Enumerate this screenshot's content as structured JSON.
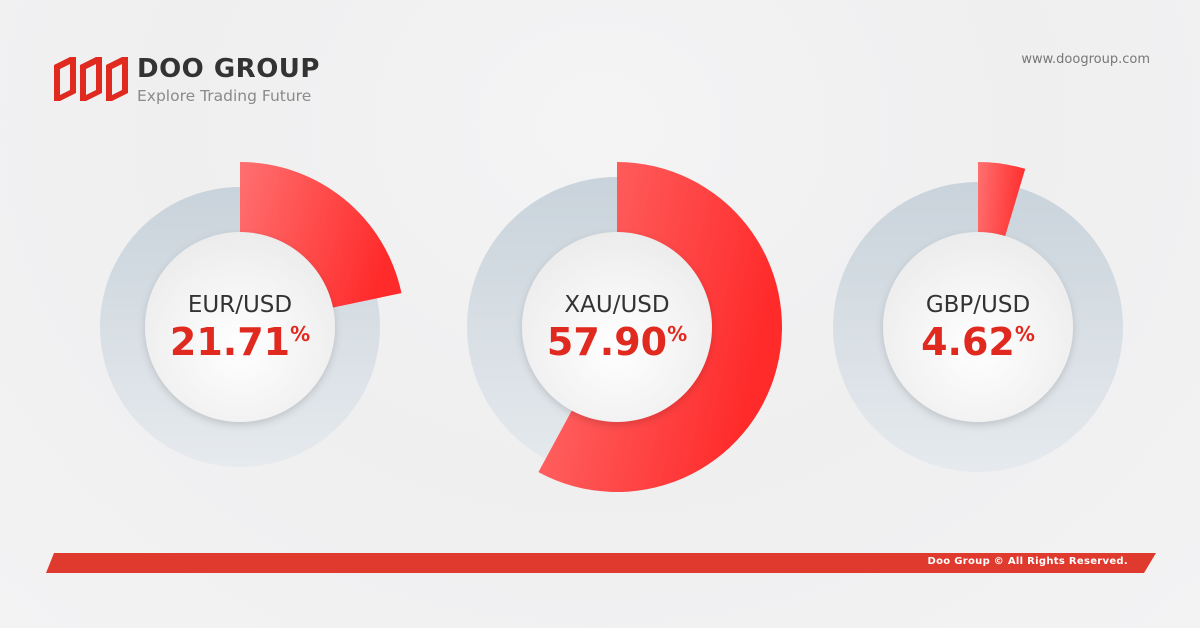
{
  "brand": {
    "name": "DOO GROUP",
    "tagline": "Explore Trading Future",
    "url": "www.doogroup.com"
  },
  "footer": {
    "text": "Doo Group © All Rights Reserved."
  },
  "colors": {
    "accent": "#ff2e2e",
    "ring": "#d6dde3",
    "footer": "#e03a2e"
  },
  "chart_data": {
    "type": "pie",
    "items": [
      {
        "label": "EUR/USD",
        "value": 21.71,
        "display": "21.71",
        "unit": "%"
      },
      {
        "label": "XAU/USD",
        "value": 57.9,
        "display": "57.90",
        "unit": "%"
      },
      {
        "label": "GBP/USD",
        "value": 4.62,
        "display": "4.62",
        "unit": "%"
      }
    ]
  }
}
